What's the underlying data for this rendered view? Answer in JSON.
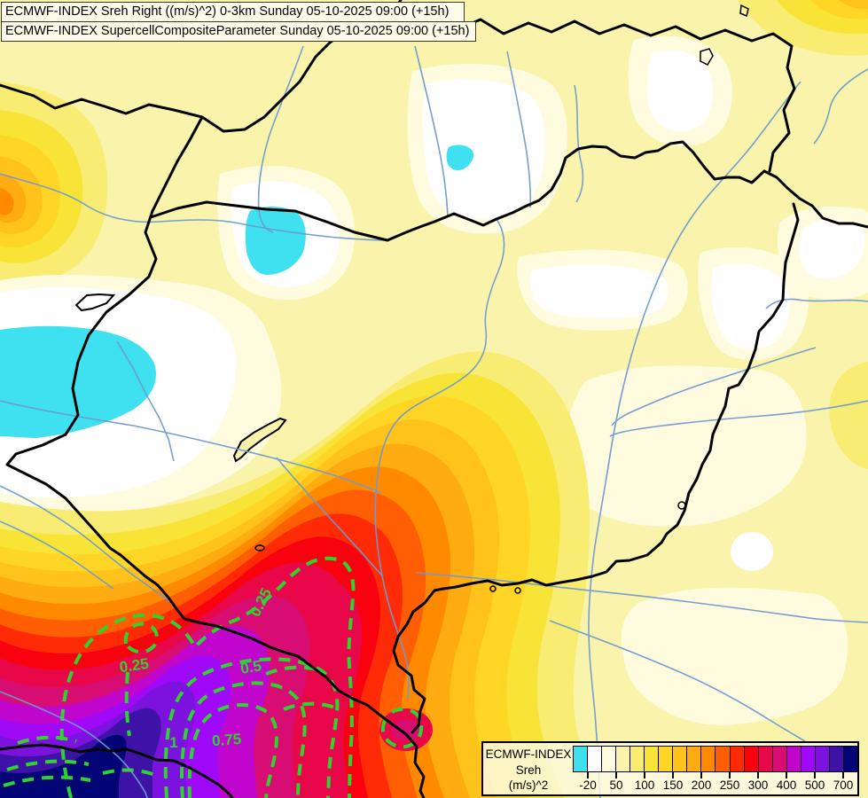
{
  "header": {
    "line1": "ECMWF-INDEX Sreh Right ((m/s)^2) 0-3km Sunday 05-10-2025 09:00 (+15h)",
    "line2": "ECMWF-INDEX SupercellCompositeParameter Sunday 05-10-2025 09:00 (+15h)"
  },
  "legend": {
    "title_lines": [
      "ECMWF-INDEX",
      "Sreh",
      "(m/s)^2"
    ],
    "ticks": [
      "-20",
      "50",
      "100",
      "150",
      "200",
      "250",
      "300",
      "400",
      "500",
      "700"
    ],
    "colors": [
      "#3FE0EF",
      "#FFFFFF",
      "#FEFBDE",
      "#FAF3AC",
      "#F8EC72",
      "#F8E437",
      "#FFD625",
      "#FFC31C",
      "#FFAC12",
      "#FF8A00",
      "#FF5E04",
      "#FF2B06",
      "#F90210",
      "#E8084A",
      "#D80D74",
      "#C005CC",
      "#A008F8",
      "#7C12DE",
      "#3E12A6",
      "#020476"
    ]
  },
  "scp": {
    "color": "#2FD32F",
    "labels": [
      {
        "text": "0.25"
      },
      {
        "text": "0.25"
      },
      {
        "text": "0.5"
      },
      {
        "text": "0.75"
      },
      {
        "text": "1"
      }
    ]
  },
  "map": {
    "border_color": "#000000",
    "river_color": "#6D9BD0"
  }
}
